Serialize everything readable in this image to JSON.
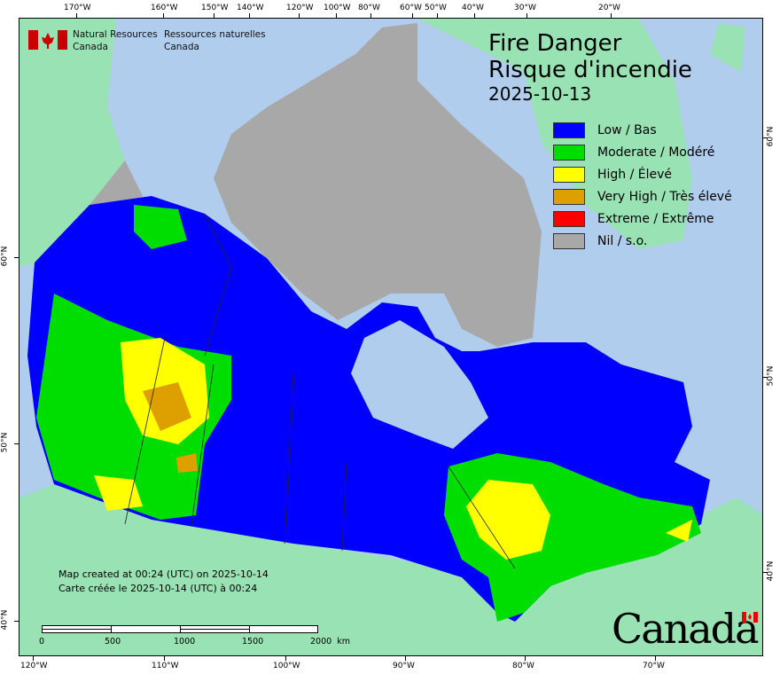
{
  "agency": {
    "en_line1": "Natural Resources",
    "en_line2": "Canada",
    "fr_line1": "Ressources naturelles",
    "fr_line2": "Canada"
  },
  "title": {
    "en": "Fire Danger",
    "fr": "Risque d'incendie",
    "date": "2025-10-13"
  },
  "legend": [
    {
      "label": "Low / Bas",
      "color": "#0000ff"
    },
    {
      "label": "Moderate / Modéré",
      "color": "#00dd00"
    },
    {
      "label": "High / Élevé",
      "color": "#ffff00"
    },
    {
      "label": "Very High / Très élevé",
      "color": "#dda000"
    },
    {
      "label": "Extreme / Extrême",
      "color": "#ff0000"
    },
    {
      "label": "Nil / s.o.",
      "color": "#a8a8a8"
    }
  ],
  "credit": {
    "en": "Map created at 00:24 (UTC) on 2025-10-14",
    "fr": "Carte créée le 2025-10-14 (UTC) à 00:24"
  },
  "scale_bar": {
    "labels": [
      "0",
      "500",
      "1000",
      "1500",
      "2000  km"
    ]
  },
  "axes": {
    "top": [
      "170°W",
      "160°W",
      "150°W",
      "140°W",
      "120°W",
      "100°W",
      "80°W",
      "60°W",
      "50°W",
      "40°W",
      "30°W",
      "20°W"
    ],
    "bottom": [
      "120°W",
      "110°W",
      "100°W",
      "90°W",
      "80°W",
      "70°W"
    ],
    "left": [
      "60°N",
      "50°N",
      "40°N"
    ],
    "right": [
      "60°N",
      "50°N",
      "40°N"
    ]
  },
  "wordmark": "Canada",
  "colors": {
    "water": "#b0cdee",
    "foreign_land": "#98e2b4",
    "low": "#0000ff",
    "moderate": "#00dd00",
    "high": "#ffff00",
    "very_high": "#dda000",
    "nil": "#a8a8a8"
  }
}
